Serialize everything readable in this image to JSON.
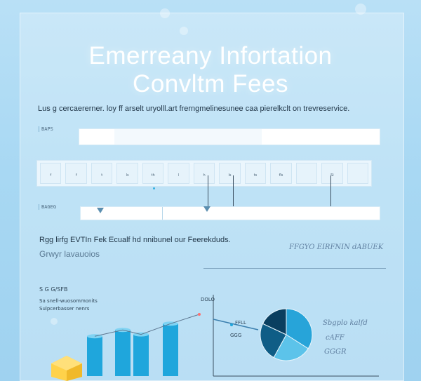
{
  "header": {
    "title_line1": "Emerreany Infortation",
    "title_line2": "Convltm Fees"
  },
  "subtitle": "Lus  g cercaererner. loy ff  arselt uryolll.art frerngmelinesunee  caa pierelkclt on trevreservice.",
  "section1": {
    "tag": "BAPS"
  },
  "tiles": [
    "f",
    "f",
    "t",
    "ls",
    "th",
    "l",
    "h",
    "ls",
    "ts",
    "fls",
    "",
    "Si",
    ""
  ],
  "section2": {
    "tag": "BAGEG"
  },
  "body": {
    "line1": "Rgg lirfg   EVTIn Fek  Ecualf hd nnibunel our Feerekduds.",
    "line2": "Grwyr lavauoios",
    "scribble1": "FFGYO  EIRFNIN dABUEK"
  },
  "chart_labels": {
    "heading": "S G G/SFB",
    "desc1": "Sa snell-wuosommonits",
    "desc2": "Sulpcerbasser nenrs",
    "lbl_a": "DOLO",
    "lbl_b": "FFLL",
    "lbl_c": "GGG",
    "right1": "Sbgplo kalfd",
    "right2": "cAFF",
    "right3": "GGGR"
  },
  "chart_data": {
    "type": "bar",
    "categories": [
      "",
      "",
      "",
      ""
    ],
    "values": [
      63,
      73,
      66,
      83
    ],
    "title": "",
    "xlabel": "",
    "ylabel": ""
  },
  "pie_data": {
    "type": "pie",
    "values": [
      34,
      24,
      24,
      18
    ]
  },
  "colors": {
    "bar": "#1fa6dc",
    "bar_dark": "#0d7fb8",
    "pie_a": "#27a4d9",
    "pie_b": "#0f5d86",
    "pie_c": "#5cc3ea",
    "pie_d": "#0a3f60",
    "accent": "#ff6f6f",
    "cube": "#ffcc3a"
  }
}
